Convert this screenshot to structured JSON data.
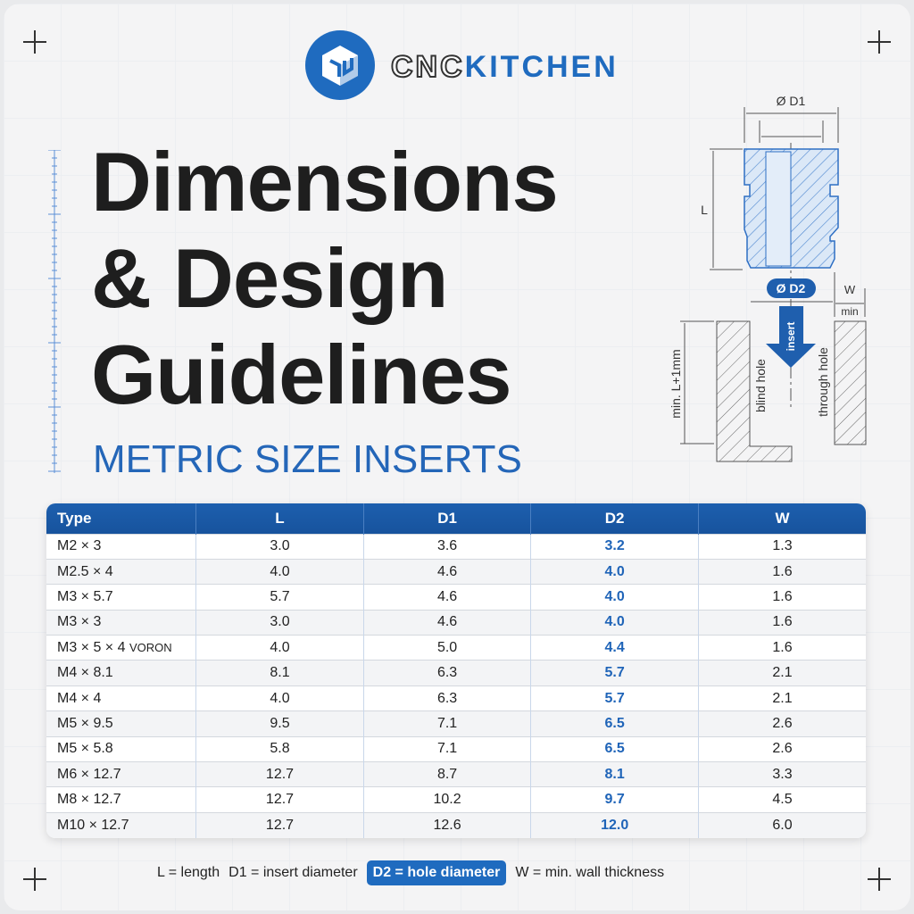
{
  "brand": {
    "part1": "CNC",
    "part2": "KITCHEN"
  },
  "title": {
    "line1": "Dimensions",
    "line2": "& Design",
    "line3": "Guidelines"
  },
  "subtitle": "METRIC SIZE INSERTS",
  "diagram": {
    "d1": "Ø D1",
    "d2": "Ø D2",
    "l": "L",
    "w": "W",
    "min": "min",
    "insert": "insert",
    "depth": "min. L+1mm",
    "blind": "blind hole",
    "through": "through hole"
  },
  "colors": {
    "accent": "#1f6bbf",
    "text": "#1e1e1e"
  },
  "table": {
    "headers": [
      "Type",
      "L",
      "D1",
      "D2",
      "W"
    ],
    "rows": [
      [
        "M2 × 3",
        "3.0",
        "3.6",
        "3.2",
        "1.3"
      ],
      [
        "M2.5 × 4",
        "4.0",
        "4.6",
        "4.0",
        "1.6"
      ],
      [
        "M3 × 5.7",
        "5.7",
        "4.6",
        "4.0",
        "1.6"
      ],
      [
        "M3 × 3",
        "3.0",
        "4.6",
        "4.0",
        "1.6"
      ],
      [
        "M3 × 5 × 4",
        "4.0",
        "5.0",
        "4.4",
        "1.6"
      ],
      [
        "M4 × 8.1",
        "8.1",
        "6.3",
        "5.7",
        "2.1"
      ],
      [
        "M4 × 4",
        "4.0",
        "6.3",
        "5.7",
        "2.1"
      ],
      [
        "M5 × 9.5",
        "9.5",
        "7.1",
        "6.5",
        "2.6"
      ],
      [
        "M5 × 5.8",
        "5.8",
        "7.1",
        "6.5",
        "2.6"
      ],
      [
        "M6 × 12.7",
        "12.7",
        "8.7",
        "8.1",
        "3.3"
      ],
      [
        "M8 × 12.7",
        "12.7",
        "10.2",
        "9.7",
        "4.5"
      ],
      [
        "M10 × 12.7",
        "12.7",
        "12.6",
        "12.0",
        "6.0"
      ]
    ],
    "row_tags": {
      "4": "VORON"
    }
  },
  "legend": {
    "l": "L = length",
    "d1": "D1 = insert diameter",
    "d2": "D2 = hole diameter",
    "w": "W = min. wall thickness"
  }
}
